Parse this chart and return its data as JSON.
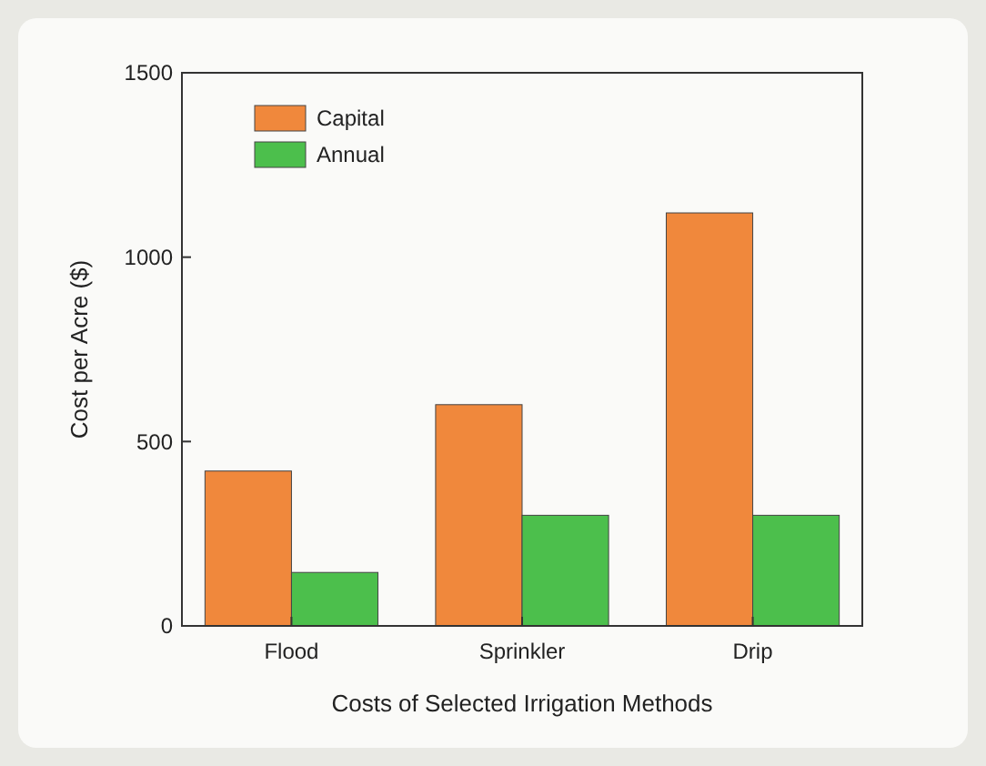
{
  "chart_data": {
    "type": "bar",
    "xlabel": "Costs of Selected Irrigation Methods",
    "ylabel": "Cost per Acre ($)",
    "categories": [
      "Flood",
      "Sprinkler",
      "Drip"
    ],
    "series": [
      {
        "name": "Capital",
        "color": "#f0883c",
        "values": [
          420,
          600,
          1120
        ]
      },
      {
        "name": "Annual",
        "color": "#4cbf4c",
        "values": [
          145,
          300,
          300
        ]
      }
    ],
    "ylim": [
      0,
      1500
    ],
    "yticks": [
      0,
      500,
      1000,
      1500
    ],
    "grid": false,
    "legend": "top left"
  }
}
